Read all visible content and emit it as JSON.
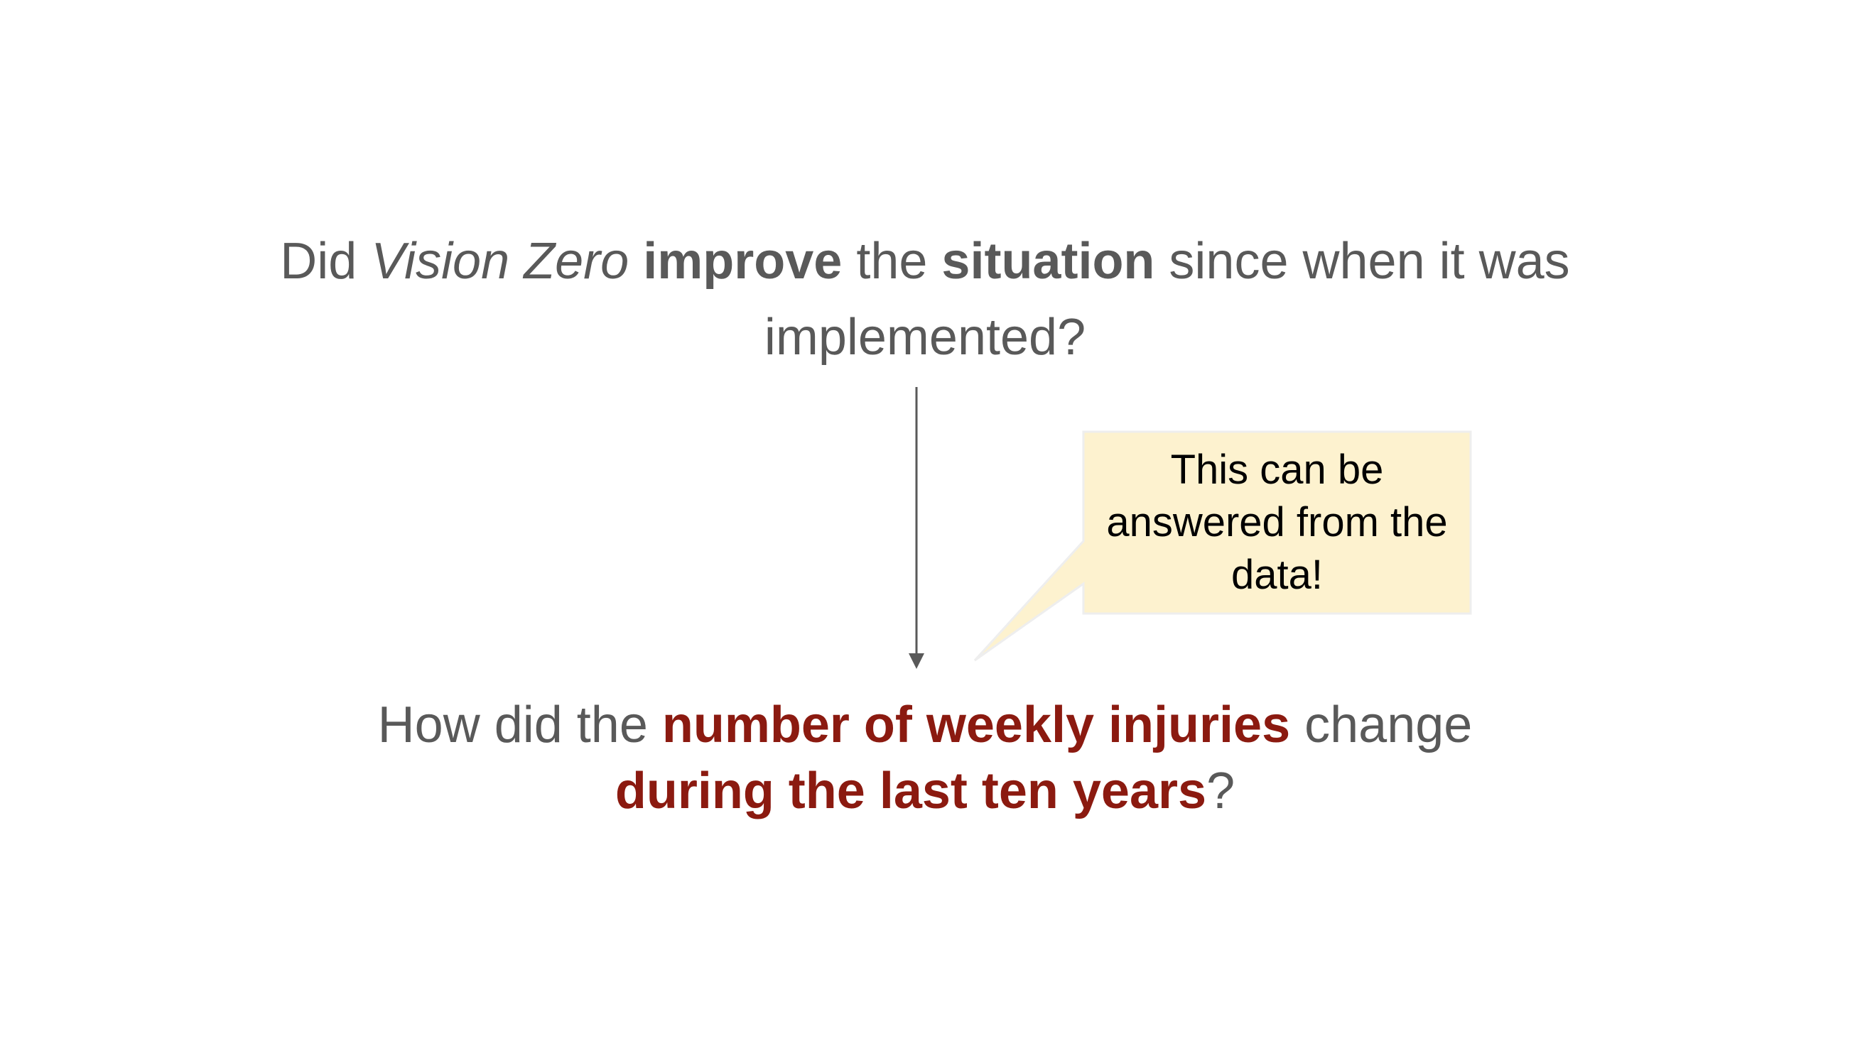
{
  "question_top": {
    "part1": "Did ",
    "part2_italic": "Vision Zero",
    "part3": " ",
    "part4_bold": "improve",
    "part5": " the ",
    "part6_bold": "situation",
    "part7": " since when it was implemented?"
  },
  "question_bottom": {
    "part1": "How did the ",
    "part2_highlight": "number of weekly injuries",
    "part3": " change ",
    "part4_highlight": "during the last ten years",
    "part5": "?"
  },
  "callout": {
    "text": "This can be answered from the data!"
  },
  "colors": {
    "text": "#595959",
    "highlight": "#8b1a10",
    "callout_fill": "#fdf2cf",
    "callout_border": "#eeeeee",
    "arrow": "#595959"
  }
}
